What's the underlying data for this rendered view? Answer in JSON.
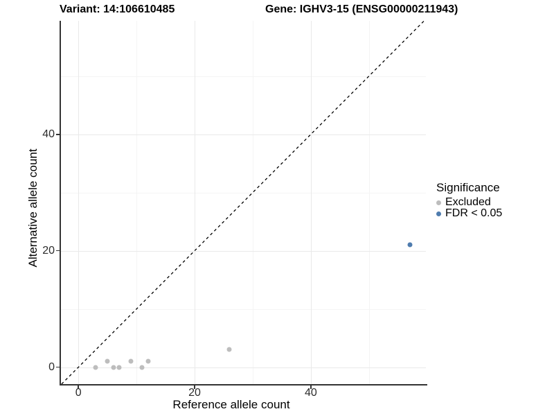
{
  "title": {
    "variant": "Variant: 14:106610485",
    "gene": "Gene: IGHV3-15 (ENSG00000211943)"
  },
  "chart_data": {
    "type": "scatter",
    "xlabel": "Reference allele count",
    "ylabel": "Alternative allele count",
    "xlim": [
      -3,
      59.8
    ],
    "ylim": [
      -2.9,
      59.5
    ],
    "x_major_ticks": [
      0,
      20,
      40
    ],
    "y_major_ticks": [
      0,
      20,
      40
    ],
    "x_minor_ticks": [
      10,
      30,
      50
    ],
    "y_minor_ticks": [
      10,
      30,
      50
    ],
    "grid": true,
    "identity_line": {
      "slope": 1,
      "intercept": 0,
      "style": "dashed",
      "color": "#000000"
    },
    "legend": {
      "title": "Significance",
      "position": "right"
    },
    "series": [
      {
        "name": "Excluded",
        "color": "#bdbdbd",
        "points": [
          [
            3,
            0
          ],
          [
            5,
            1
          ],
          [
            6,
            0
          ],
          [
            7,
            0
          ],
          [
            9,
            1
          ],
          [
            11,
            0
          ],
          [
            12,
            1
          ],
          [
            26,
            3
          ]
        ]
      },
      {
        "name": "FDR < 0.05",
        "color": "#4f7cae",
        "points": [
          [
            57,
            21
          ]
        ]
      }
    ]
  }
}
